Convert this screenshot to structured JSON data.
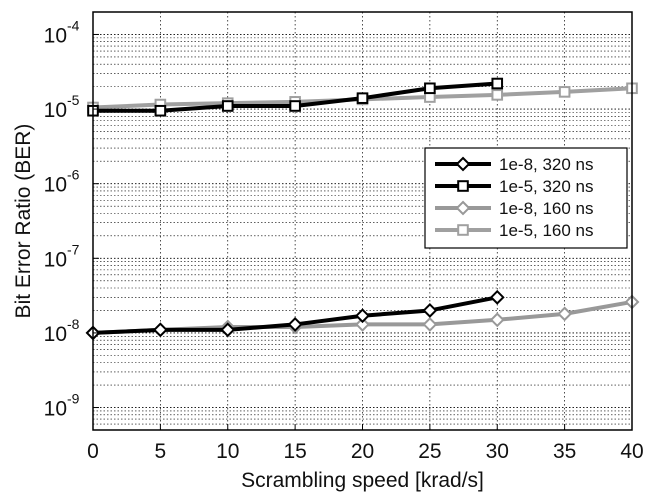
{
  "chart_data": {
    "type": "line",
    "title": "",
    "xlabel": "Scrambling speed [krad/s]",
    "ylabel": "Bit Error Ratio (BER)",
    "xlim": [
      0,
      40
    ],
    "ylim": [
      5e-10,
      0.0002
    ],
    "yscale": "log",
    "grid": true,
    "legend_position": "right",
    "x_ticks": [
      "0",
      "5",
      "10",
      "15",
      "20",
      "25",
      "30",
      "35",
      "40"
    ],
    "y_ticks": [
      {
        "base": "10",
        "exp": "-9"
      },
      {
        "base": "10",
        "exp": "-8"
      },
      {
        "base": "10",
        "exp": "-7"
      },
      {
        "base": "10",
        "exp": "-6"
      },
      {
        "base": "10",
        "exp": "-5"
      },
      {
        "base": "10",
        "exp": "-4"
      }
    ],
    "series": [
      {
        "name": "1e-8, 320 ns",
        "color": "#000000",
        "marker": "diamond",
        "x": [
          0,
          5,
          10,
          15,
          20,
          25,
          30
        ],
        "y": [
          1e-08,
          1.1e-08,
          1.1e-08,
          1.3e-08,
          1.7e-08,
          2e-08,
          3e-08
        ]
      },
      {
        "name": "1e-5, 320 ns",
        "color": "#000000",
        "marker": "square",
        "x": [
          0,
          5,
          10,
          15,
          20,
          25,
          30
        ],
        "y": [
          9.5e-06,
          9.5e-06,
          1.1e-05,
          1.1e-05,
          1.4e-05,
          1.9e-05,
          2.2e-05
        ]
      },
      {
        "name": "1e-8, 160 ns",
        "color": "#999999",
        "marker": "diamond",
        "x": [
          0,
          5,
          10,
          15,
          20,
          25,
          30,
          35,
          40
        ],
        "y": [
          1e-08,
          1.1e-08,
          1.2e-08,
          1.2e-08,
          1.3e-08,
          1.3e-08,
          1.5e-08,
          1.8e-08,
          2.6e-08
        ]
      },
      {
        "name": "1e-5, 160 ns",
        "color": "#a0a0a0",
        "marker": "square",
        "x": [
          0,
          5,
          10,
          15,
          20,
          25,
          30,
          35,
          40
        ],
        "y": [
          1.05e-05,
          1.15e-05,
          1.2e-05,
          1.25e-05,
          1.35e-05,
          1.45e-05,
          1.55e-05,
          1.7e-05,
          1.9e-05
        ]
      }
    ]
  }
}
